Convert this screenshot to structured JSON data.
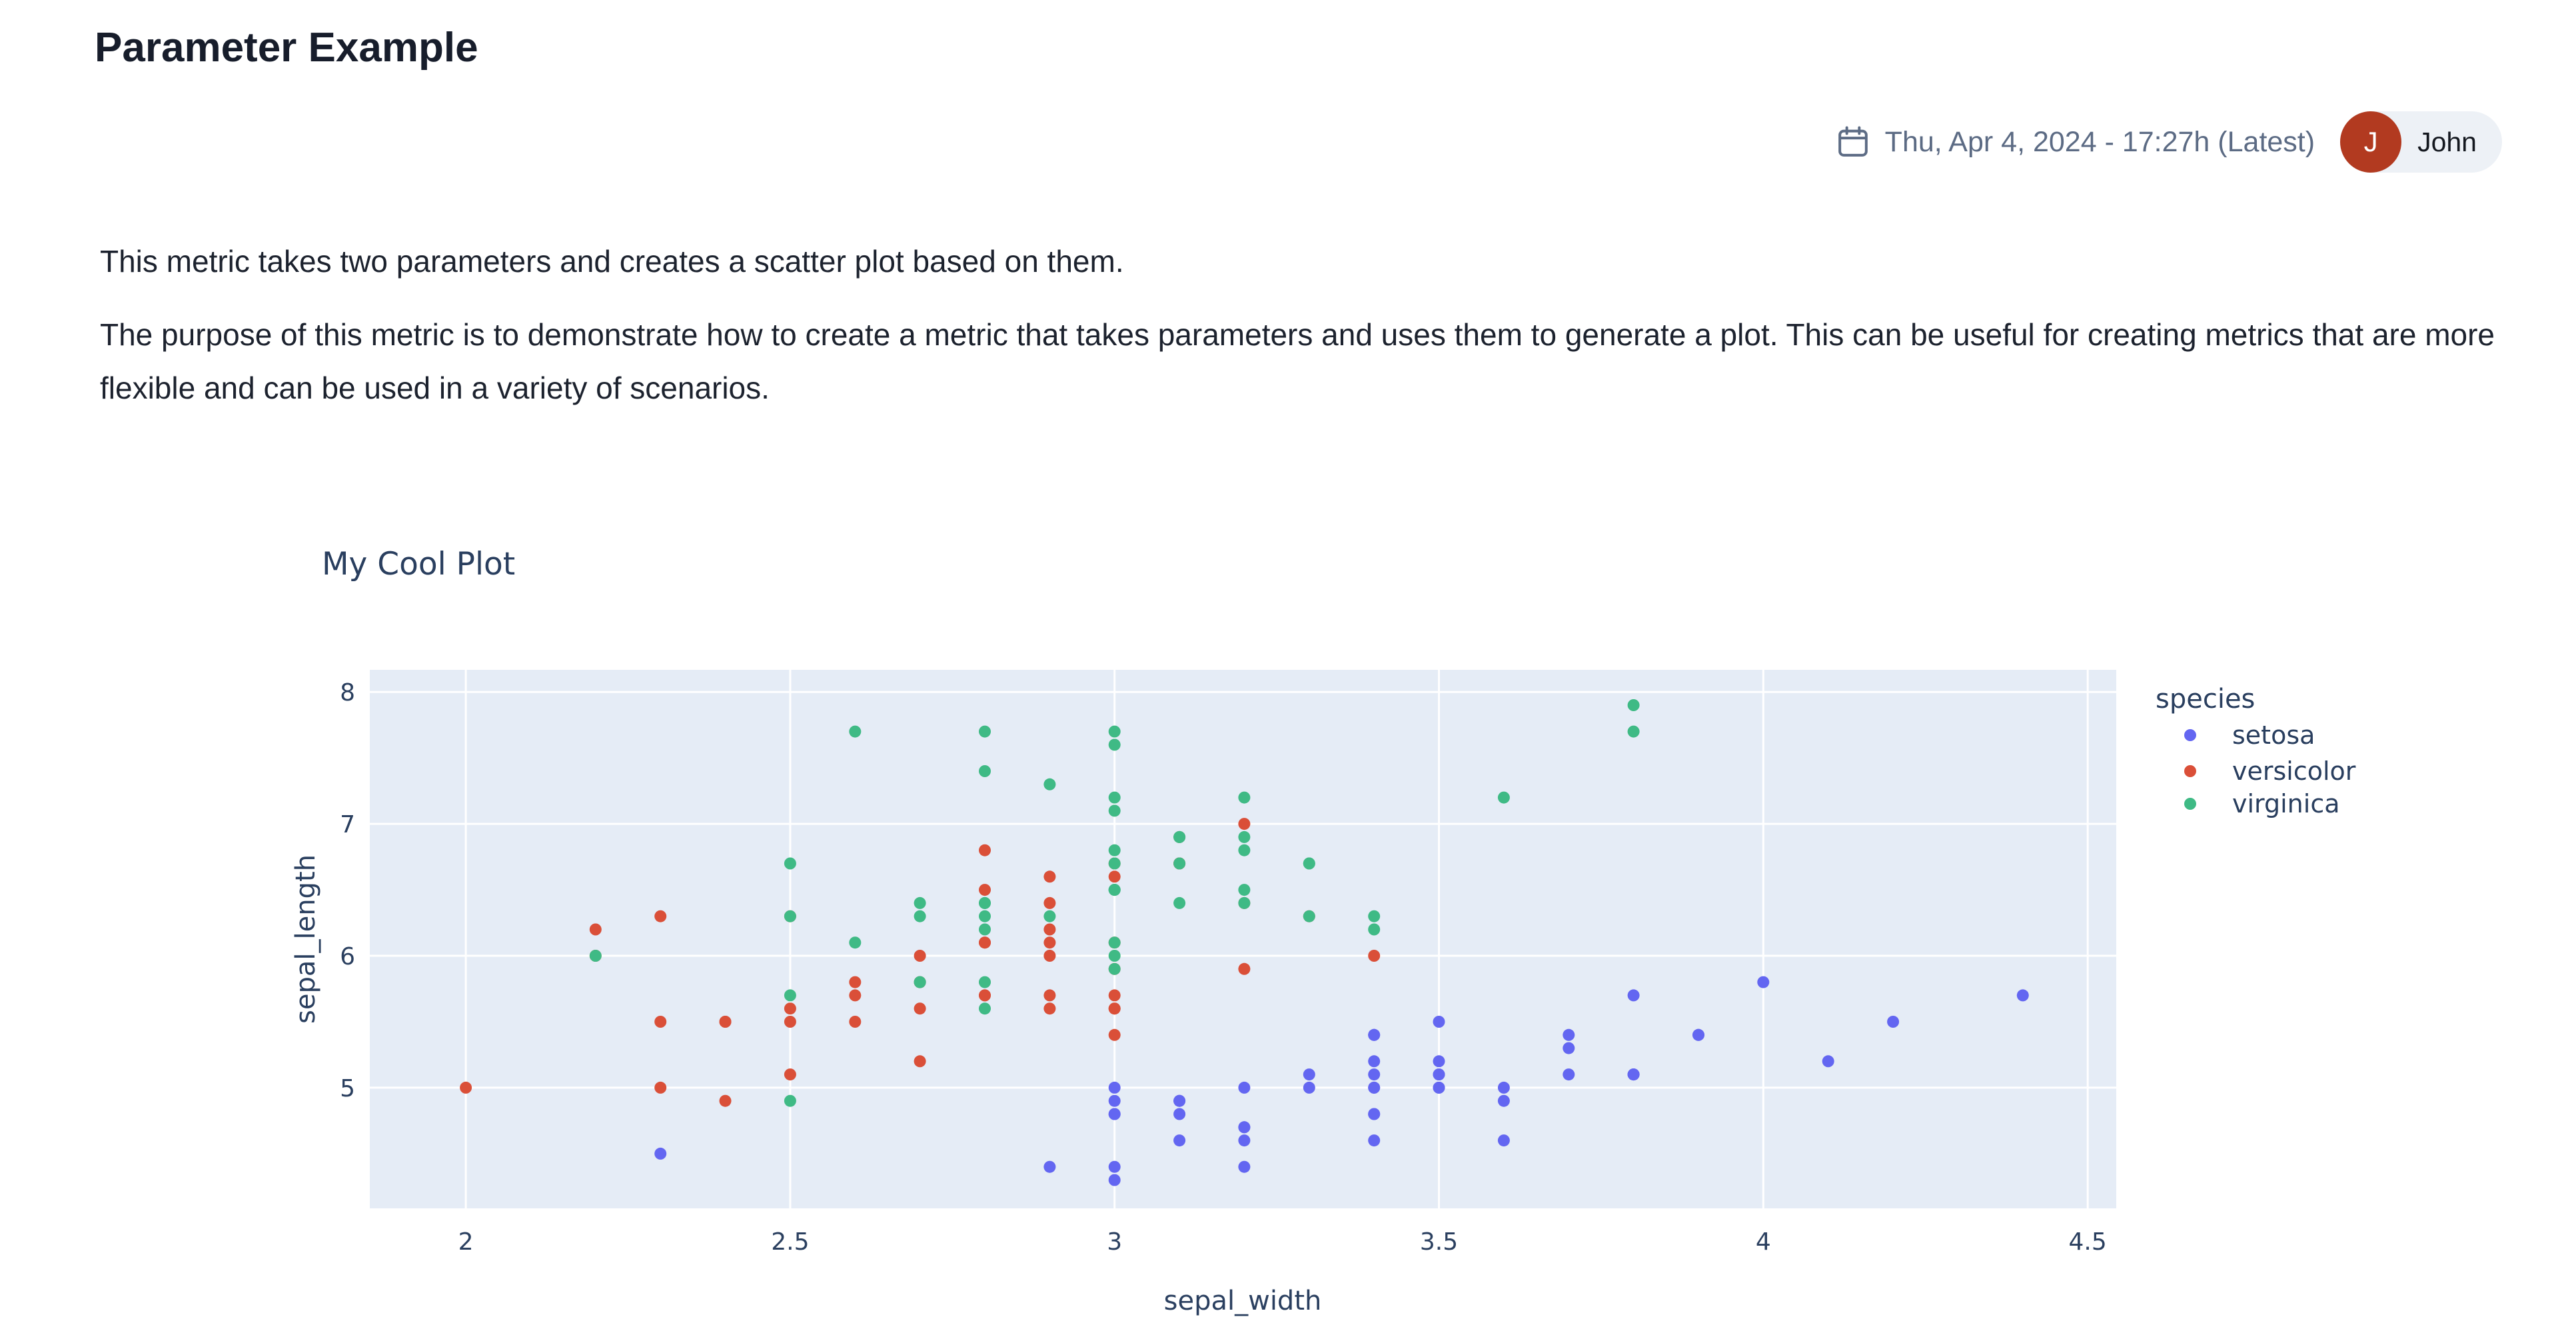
{
  "header": {
    "title": "Parameter Example",
    "date_label": "Thu, Apr 4, 2024 - 17:27h (Latest)",
    "user": {
      "initial": "J",
      "name": "John",
      "avatar_color": "#b23a20"
    },
    "colors": {
      "date_text": "#5c6b84",
      "chip_bg": "#edf1f6"
    }
  },
  "description": {
    "paragraph1": "This metric takes two parameters and creates a scatter plot based on them.",
    "paragraph2": "The purpose of this metric is to demonstrate how to create a metric that takes parameters and uses them to generate a plot. This can be useful for creating metrics that are more flexible and can be used in a variety of scenarios."
  },
  "chart_data": {
    "type": "scatter",
    "title": "My Cool Plot",
    "xlabel": "sepal_width",
    "ylabel": "sepal_length",
    "xlim": [
      1.852,
      4.544
    ],
    "ylim": [
      4.085,
      8.168
    ],
    "xticks": [
      2,
      2.5,
      3,
      3.5,
      4,
      4.5
    ],
    "yticks": [
      5,
      6,
      7,
      8
    ],
    "grid": true,
    "plot_bg": "#e5ecf6",
    "grid_color": "#ffffff",
    "text_color": "#2a3f5f",
    "marker_radius": 9,
    "legend_title": "species",
    "legend_position": "right",
    "series": [
      {
        "name": "setosa",
        "color": "#6366f1",
        "x": [
          3.5,
          3.0,
          3.2,
          3.1,
          3.6,
          3.9,
          3.4,
          3.4,
          2.9,
          3.1,
          3.7,
          3.4,
          3.0,
          3.0,
          4.0,
          4.4,
          3.9,
          3.5,
          3.8,
          3.8,
          3.4,
          3.7,
          3.6,
          3.3,
          3.4,
          3.0,
          3.4,
          3.5,
          3.4,
          3.2,
          3.1,
          3.4,
          4.1,
          4.2,
          3.1,
          3.2,
          3.5,
          3.6,
          3.0,
          3.4,
          3.5,
          2.3,
          3.2,
          3.5,
          3.8,
          3.0,
          3.8,
          3.2,
          3.7,
          3.3
        ],
        "y": [
          5.1,
          4.9,
          4.7,
          4.6,
          5.0,
          5.4,
          4.6,
          5.0,
          4.4,
          4.9,
          5.4,
          4.8,
          4.8,
          4.3,
          5.8,
          5.7,
          5.4,
          5.1,
          5.7,
          5.1,
          5.4,
          5.1,
          4.6,
          5.1,
          4.8,
          5.0,
          5.0,
          5.2,
          5.2,
          4.7,
          4.8,
          5.4,
          5.2,
          5.5,
          4.9,
          5.0,
          5.5,
          4.9,
          4.4,
          5.1,
          5.0,
          4.5,
          4.4,
          5.0,
          5.1,
          4.8,
          5.1,
          4.6,
          5.3,
          5.0
        ]
      },
      {
        "name": "versicolor",
        "color": "#da4f38",
        "x": [
          3.2,
          3.2,
          3.1,
          2.3,
          2.8,
          2.8,
          3.3,
          2.4,
          2.9,
          2.7,
          2.0,
          3.0,
          2.2,
          2.9,
          2.9,
          3.1,
          3.0,
          2.7,
          2.2,
          2.5,
          3.2,
          2.8,
          2.5,
          2.8,
          2.9,
          3.0,
          2.8,
          3.0,
          2.9,
          2.6,
          2.4,
          2.4,
          2.7,
          2.7,
          3.0,
          3.4,
          3.1,
          2.3,
          3.0,
          2.5,
          2.6,
          3.0,
          2.6,
          2.3,
          2.7,
          3.0,
          2.9,
          2.9,
          2.5,
          2.8
        ],
        "y": [
          7.0,
          6.4,
          6.9,
          5.5,
          6.5,
          5.7,
          6.3,
          4.9,
          6.6,
          5.2,
          5.0,
          5.9,
          6.0,
          6.1,
          5.6,
          6.7,
          5.6,
          5.8,
          6.2,
          5.6,
          5.9,
          6.1,
          6.3,
          6.1,
          6.4,
          6.6,
          6.8,
          6.7,
          6.0,
          5.7,
          5.5,
          5.5,
          5.8,
          6.0,
          5.4,
          6.0,
          6.7,
          6.3,
          5.6,
          5.5,
          5.5,
          6.1,
          5.8,
          5.0,
          5.6,
          5.7,
          5.7,
          6.2,
          5.1,
          5.7
        ]
      },
      {
        "name": "virginica",
        "color": "#3fba85",
        "x": [
          3.3,
          2.7,
          3.0,
          2.9,
          3.0,
          3.0,
          2.5,
          2.9,
          2.5,
          3.6,
          3.2,
          2.7,
          3.0,
          2.5,
          2.8,
          3.2,
          3.0,
          3.8,
          2.6,
          2.2,
          3.2,
          2.8,
          2.8,
          2.7,
          3.3,
          3.2,
          2.8,
          3.0,
          2.8,
          3.0,
          2.8,
          3.8,
          2.8,
          2.8,
          2.6,
          3.0,
          3.4,
          3.1,
          3.0,
          3.1,
          3.1,
          3.1,
          2.7,
          3.2,
          3.3,
          3.0,
          2.5,
          3.0,
          3.4,
          3.0
        ],
        "y": [
          6.3,
          5.8,
          7.1,
          6.3,
          6.5,
          7.6,
          4.9,
          7.3,
          6.7,
          7.2,
          6.5,
          6.4,
          6.8,
          5.7,
          5.8,
          6.4,
          6.5,
          7.7,
          7.7,
          6.0,
          6.9,
          5.6,
          7.7,
          6.3,
          6.7,
          7.2,
          6.2,
          6.1,
          6.4,
          7.2,
          7.4,
          7.9,
          6.4,
          6.3,
          6.1,
          7.7,
          6.3,
          6.4,
          6.0,
          6.9,
          6.7,
          6.9,
          5.8,
          6.8,
          6.7,
          6.7,
          6.3,
          6.5,
          6.2,
          5.9
        ]
      }
    ]
  }
}
